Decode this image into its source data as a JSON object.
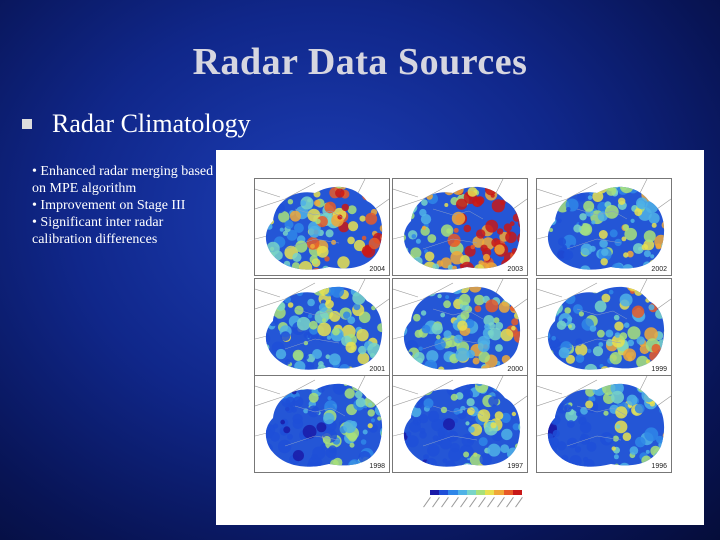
{
  "slide": {
    "title": "Radar Data Sources",
    "main_bullet": "Radar Climatology",
    "sub_bullets": [
      "• Enhanced radar merging based on MPE algorithm",
      "• Improvement on Stage III",
      "• Significant inter radar calibration differences"
    ]
  },
  "figure": {
    "panels": [
      {
        "year": "2004"
      },
      {
        "year": "2003"
      },
      {
        "year": "2002"
      },
      {
        "year": "2001"
      },
      {
        "year": "2000"
      },
      {
        "year": "1999"
      },
      {
        "year": "1998"
      },
      {
        "year": "1997"
      },
      {
        "year": "1996"
      }
    ],
    "legend_colors": [
      "#1a1aa8",
      "#1f4fd8",
      "#2f86e8",
      "#4fb2e6",
      "#78d4c8",
      "#a8e07a",
      "#e8e050",
      "#f0a838",
      "#e85a28",
      "#c81818"
    ]
  }
}
